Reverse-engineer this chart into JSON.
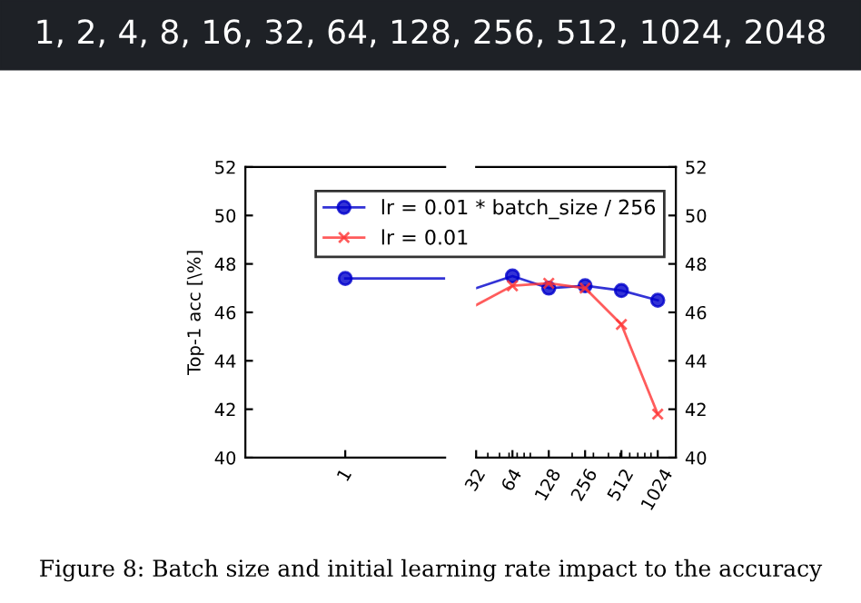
{
  "chart_data": [
    {
      "type": "line",
      "ylabel": "Top-1 acc [\\%]",
      "categories": [
        "1"
      ],
      "ref_lines": [
        {
          "axis": "y",
          "value": 47.4,
          "color": "#0000cc"
        }
      ],
      "ylim": [
        40,
        52
      ],
      "yticks": [
        40,
        42,
        44,
        46,
        48,
        50,
        52
      ],
      "marker": "circle",
      "grid": false,
      "legend": false,
      "annotations": [
        "1, 2, 4, 8, 16, 32, 64, 128, 256, 512, 1024, 2048",
        "Figure 8: Batch size and initial learning rate impact to the accuracy"
      ],
      "series": [
        {
          "color": "#0000cc",
          "values": [
            47.4
          ]
        }
      ]
    },
    {
      "type": "line",
      "log": "x",
      "x": [
        32,
        64,
        128,
        256,
        512,
        1024
      ],
      "xlim": [
        32,
        1448
      ],
      "xticks": [
        32,
        64,
        128,
        256,
        512,
        1024
      ],
      "ylim": [
        40,
        52
      ],
      "yticks": [
        40,
        42,
        44,
        46,
        48,
        50,
        52
      ],
      "grid": false,
      "legend": "top left",
      "series": [
        {
          "name": "lr = 0.01 * batch_size / 256",
          "color": "#0000cc",
          "marker": "circle",
          "values": [
            47.0,
            47.5,
            47.0,
            47.1,
            46.9,
            46.5
          ]
        },
        {
          "name": "lr = 0.01",
          "color": "#ff3333",
          "marker": "cross",
          "values": [
            46.3,
            47.1,
            47.2,
            47.0,
            45.5,
            41.8
          ]
        }
      ]
    }
  ]
}
